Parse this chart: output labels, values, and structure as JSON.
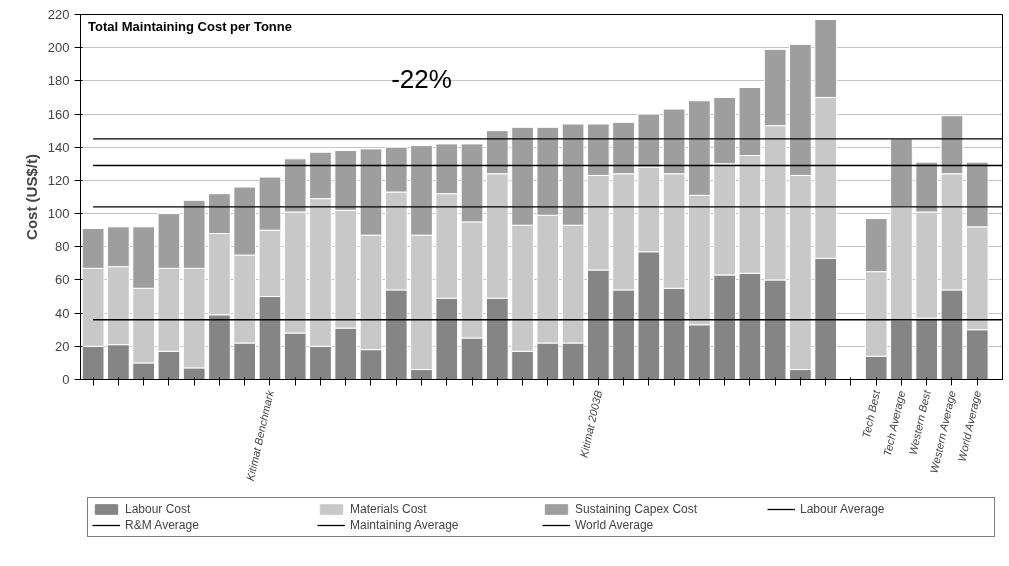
{
  "chart_data": {
    "type": "bar",
    "stacked": true,
    "title": "Total Maintaining Cost per Tonne",
    "ylabel": "Cost (US$/t)",
    "categories": [
      null,
      null,
      null,
      null,
      null,
      null,
      null,
      "Kitimat Benchmark",
      null,
      null,
      null,
      null,
      null,
      null,
      null,
      null,
      null,
      null,
      null,
      null,
      "Kitimat 2003B",
      null,
      null,
      null,
      null,
      null,
      null,
      null,
      null,
      null,
      null,
      "Tech Best",
      "Tech Average",
      "Western Best",
      "Western Average",
      "World Average"
    ],
    "series": [
      {
        "name": "Labour Cost",
        "color": "#858585",
        "values": [
          20,
          21,
          10,
          17,
          7,
          39,
          22,
          50,
          28,
          20,
          31,
          18,
          54,
          6,
          49,
          25,
          49,
          17,
          22,
          22,
          66,
          54,
          77,
          55,
          33,
          63,
          64,
          60,
          6,
          73,
          null,
          14,
          36,
          37,
          54,
          30
        ]
      },
      {
        "name": "Materials Cost",
        "color": "#c8c8c8",
        "values": [
          47,
          47,
          45,
          50,
          60,
          49,
          53,
          40,
          73,
          89,
          71,
          69,
          59,
          81,
          63,
          70,
          75,
          76,
          77,
          71,
          57,
          70,
          51,
          69,
          78,
          67,
          71,
          93,
          117,
          97,
          null,
          51,
          68,
          64,
          70,
          62
        ]
      },
      {
        "name": "Sustaining Capex Cost",
        "color": "#9e9e9e",
        "values": [
          24,
          24,
          37,
          33,
          41,
          24,
          41,
          32,
          32,
          28,
          36,
          52,
          27,
          54,
          30,
          47,
          26,
          59,
          53,
          61,
          31,
          31,
          32,
          39,
          57,
          40,
          41,
          46,
          79,
          47,
          null,
          32,
          41,
          30,
          35,
          39
        ]
      }
    ],
    "ref_lines": [
      {
        "axis": "y",
        "value": 36,
        "label": "Labour Average",
        "color": "#000000"
      },
      {
        "axis": "y",
        "value": 104,
        "label": "R&M Average",
        "color": "#000000"
      },
      {
        "axis": "y",
        "value": 145,
        "label": "Maintaining Average",
        "color": "#000000"
      },
      {
        "axis": "y",
        "value": 129,
        "label": "World Average",
        "color": "#000000"
      }
    ],
    "annotations": [
      "-22%"
    ],
    "ylim": [
      0,
      220
    ],
    "yticks": [
      0,
      20,
      40,
      60,
      80,
      100,
      120,
      140,
      160,
      180,
      200,
      220
    ],
    "grid": "y",
    "legend": "bottom"
  }
}
